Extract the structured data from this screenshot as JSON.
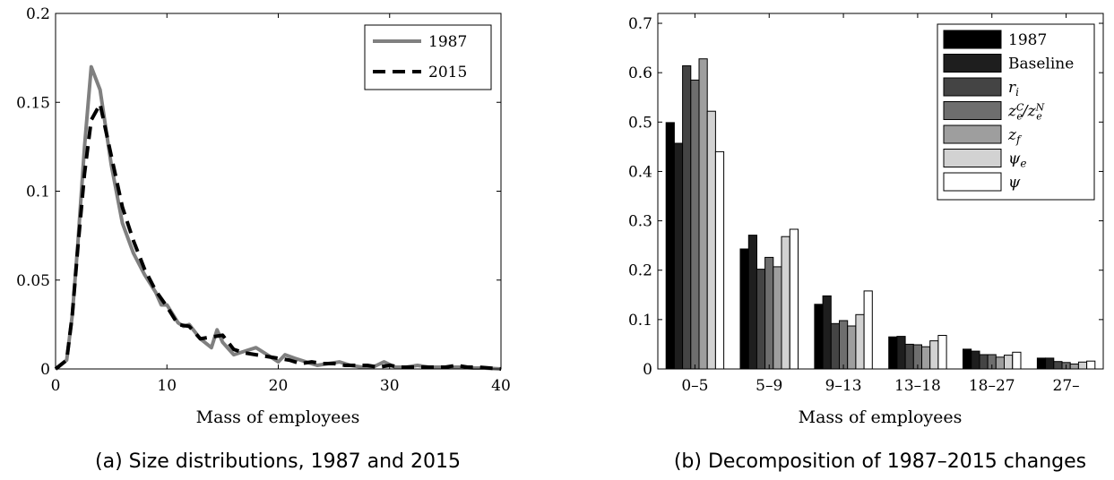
{
  "chart_data": [
    {
      "type": "line",
      "caption": "(a) Size distributions, 1987 and 2015",
      "xlabel": "Mass of employees",
      "ylabel": "",
      "xlim": [
        0,
        40
      ],
      "ylim": [
        0,
        0.2
      ],
      "xticks": [
        0,
        10,
        20,
        30,
        40
      ],
      "yticks": [
        0,
        0.05,
        0.1,
        0.15,
        0.2
      ],
      "ytick_labels": [
        "0",
        "0.05",
        "0.1",
        "0.15",
        "0.2"
      ],
      "legend_position": "top-right",
      "series": [
        {
          "name": "1987",
          "color": "#808080",
          "style": "solid",
          "x": [
            0,
            1,
            1.5,
            2,
            2.6,
            3.2,
            4,
            5,
            6,
            7,
            8,
            9,
            9.5,
            10,
            11,
            11.5,
            12,
            13,
            14,
            14.5,
            15,
            16,
            17,
            18,
            19,
            20,
            20.6,
            21.5,
            22.5,
            23.5,
            24.5,
            25.5,
            26.5,
            27.5,
            28.5,
            29.5,
            30.5,
            31.5,
            32.5,
            33.5,
            34.5,
            35.5,
            36.5,
            37.5,
            38.5,
            40
          ],
          "y": [
            0,
            0.005,
            0.03,
            0.07,
            0.125,
            0.17,
            0.157,
            0.115,
            0.082,
            0.065,
            0.053,
            0.043,
            0.036,
            0.036,
            0.026,
            0.024,
            0.025,
            0.017,
            0.012,
            0.022,
            0.015,
            0.008,
            0.01,
            0.012,
            0.008,
            0.004,
            0.008,
            0.006,
            0.004,
            0.002,
            0.003,
            0.004,
            0.002,
            0.001,
            0.001,
            0.004,
            0.001,
            0.001,
            0.002,
            0.001,
            0.001,
            0.001,
            0.001,
            0.0005,
            0.0005,
            0
          ]
        },
        {
          "name": "2015",
          "color": "#000000",
          "style": "dashed",
          "x": [
            0,
            1,
            1.5,
            2,
            2.6,
            3.2,
            4,
            5,
            6,
            7,
            8,
            9,
            10,
            11,
            12,
            13,
            14,
            15,
            16,
            17,
            18,
            19,
            20,
            21,
            22,
            23,
            24,
            25,
            26,
            27,
            28,
            29,
            30,
            31,
            32,
            33,
            34,
            35,
            36,
            37,
            38,
            39,
            40
          ],
          "y": [
            0,
            0.005,
            0.03,
            0.068,
            0.11,
            0.14,
            0.149,
            0.12,
            0.091,
            0.072,
            0.056,
            0.044,
            0.035,
            0.025,
            0.024,
            0.017,
            0.018,
            0.019,
            0.011,
            0.009,
            0.008,
            0.007,
            0.006,
            0.005,
            0.003,
            0.004,
            0.003,
            0.003,
            0.002,
            0.002,
            0.002,
            0.001,
            0.002,
            0.001,
            0.001,
            0.001,
            0.001,
            0.001,
            0.002,
            0.001,
            0.001,
            0.0005,
            0
          ]
        }
      ]
    },
    {
      "type": "bar",
      "caption": "(b) Decomposition of 1987–2015 changes",
      "xlabel": "Mass of employees",
      "ylabel": "",
      "ylim": [
        0,
        0.72
      ],
      "yticks": [
        0,
        0.1,
        0.2,
        0.3,
        0.4,
        0.5,
        0.6,
        0.7
      ],
      "ytick_labels": [
        "0",
        "0.1",
        "0.2",
        "0.3",
        "0.4",
        "0.5",
        "0.6",
        "0.7"
      ],
      "categories": [
        "0–5",
        "5–9",
        "9–13",
        "13–18",
        "18–27",
        "27–"
      ],
      "legend_position": "top-right",
      "series": [
        {
          "name": "1987",
          "color": "#000000",
          "values": [
            0.499,
            0.243,
            0.131,
            0.065,
            0.04,
            0.022
          ]
        },
        {
          "name": "Baseline",
          "color": "#1e1e1e",
          "values": [
            0.457,
            0.271,
            0.148,
            0.066,
            0.036,
            0.022
          ]
        },
        {
          "name": "r_i",
          "color": "#444444",
          "values": [
            0.614,
            0.202,
            0.092,
            0.05,
            0.029,
            0.015
          ]
        },
        {
          "name": "z_e^C/z_e^N",
          "color": "#6e6e6e",
          "values": [
            0.585,
            0.226,
            0.098,
            0.049,
            0.029,
            0.013
          ]
        },
        {
          "name": "z_f",
          "color": "#9e9e9e",
          "values": [
            0.628,
            0.207,
            0.087,
            0.045,
            0.024,
            0.01
          ]
        },
        {
          "name": "ψ_e",
          "color": "#d2d2d2",
          "values": [
            0.522,
            0.268,
            0.11,
            0.057,
            0.028,
            0.014
          ]
        },
        {
          "name": "ψ",
          "color": "#ffffff",
          "values": [
            0.44,
            0.283,
            0.158,
            0.068,
            0.034,
            0.016
          ]
        }
      ]
    }
  ]
}
